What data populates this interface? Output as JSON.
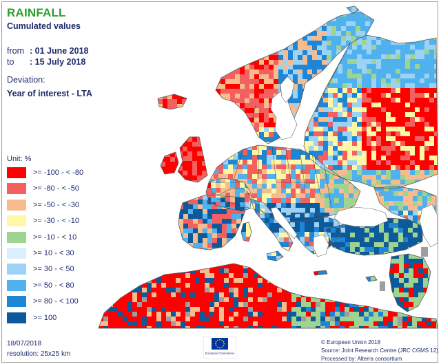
{
  "title": "RAINFALL",
  "subtitle": "Cumulated values",
  "period": {
    "from_label": "from",
    "from_value": ": 01 June 2018",
    "to_label": "to",
    "to_value": ": 15 July 2018"
  },
  "deviation": {
    "label": "Deviation:",
    "value": "Year of interest - LTA"
  },
  "legend": {
    "unit": "Unit:  %",
    "classes": [
      {
        "label": ">= -100 - < -80",
        "color": "#ff0000"
      },
      {
        "label": ">= -80 - < -50",
        "color": "#f26060"
      },
      {
        "label": ">= -50 - < -30",
        "color": "#f6bc8e"
      },
      {
        "label": ">= -30 - < -10",
        "color": "#fdf7a6"
      },
      {
        "label": ">= -10 - < 10",
        "color": "#9fd390"
      },
      {
        "label": ">= 10 - < 30",
        "color": "#dbeefc"
      },
      {
        "label": ">= 30 - < 50",
        "color": "#9cd2f6"
      },
      {
        "label": ">= 50 - < 80",
        "color": "#4fb1ee"
      },
      {
        "label": ">= 80 - < 100",
        "color": "#1f86d6"
      },
      {
        "label": ">= 100",
        "color": "#0c5a9c"
      }
    ]
  },
  "footer": {
    "date": "18/07/2018",
    "resolution": "resolution:  25x25 km",
    "logo_text": "European Commission",
    "credits": [
      "© European Union 2018",
      "Source: Joint Research Centre (JRC CGMS 12)",
      "Processed by: Alterra consortium"
    ]
  },
  "colors": {
    "title": "#2aa02a",
    "text": "#1f2b6b",
    "sea": "#ffffff",
    "no_data": "#9e9e9e"
  }
}
